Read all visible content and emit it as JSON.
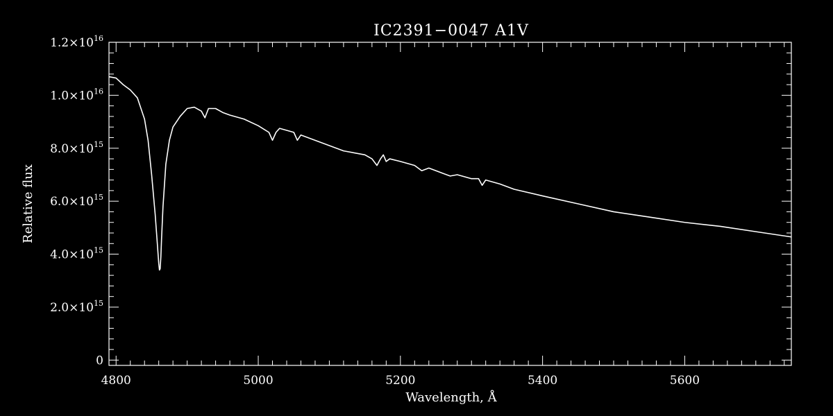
{
  "chart_data": {
    "type": "line",
    "title": "IC2391−0047  A1V",
    "xlabel": "Wavelength, Å",
    "ylabel": "Relative flux",
    "xlim": [
      4790,
      5750
    ],
    "ylim": [
      -200000000000000.0,
      1.2e+16
    ],
    "grid": false,
    "background": "#000000",
    "foreground": "#ffffff",
    "x_ticks": [
      {
        "value": 4800,
        "label": "4800"
      },
      {
        "value": 5000,
        "label": "5000"
      },
      {
        "value": 5200,
        "label": "5200"
      },
      {
        "value": 5400,
        "label": "5400"
      },
      {
        "value": 5600,
        "label": "5600"
      }
    ],
    "x_minor_step": 20,
    "y_ticks": [
      {
        "value": 0,
        "mantissa": "0",
        "exp": ""
      },
      {
        "value": 2000000000000000.0,
        "mantissa": "2.0×10",
        "exp": "15"
      },
      {
        "value": 4000000000000000.0,
        "mantissa": "4.0×10",
        "exp": "15"
      },
      {
        "value": 6000000000000000.0,
        "mantissa": "6.0×10",
        "exp": "15"
      },
      {
        "value": 8000000000000000.0,
        "mantissa": "8.0×10",
        "exp": "15"
      },
      {
        "value": 1e+16,
        "mantissa": "1.0×10",
        "exp": "16"
      },
      {
        "value": 1.2e+16,
        "mantissa": "1.2×10",
        "exp": "16"
      }
    ],
    "y_minor_step": 400000000000000.0,
    "series": [
      {
        "x": [
          4790,
          4800,
          4810,
          4820,
          4830,
          4840,
          4845,
          4850,
          4855,
          4858,
          4860,
          4861,
          4862,
          4863,
          4864,
          4866,
          4870,
          4875,
          4880,
          4890,
          4900,
          4910,
          4920,
          4925,
          4930,
          4940,
          4950,
          4960,
          4980,
          5000,
          5015,
          5020,
          5025,
          5030,
          5050,
          5055,
          5060,
          5080,
          5100,
          5120,
          5150,
          5160,
          5167,
          5172,
          5176,
          5180,
          5185,
          5200,
          5220,
          5230,
          5240,
          5260,
          5270,
          5280,
          5300,
          5310,
          5315,
          5320,
          5340,
          5360,
          5400,
          5450,
          5500,
          5550,
          5600,
          5650,
          5700,
          5750
        ],
        "y": [
          1.07e+16,
          1.065e+16,
          1.04e+16,
          1.02e+16,
          9900000000000000.0,
          9100000000000000.0,
          8300000000000000.0,
          7000000000000000.0,
          5500000000000000.0,
          4400000000000000.0,
          3650000000000000.0,
          3400000000000000.0,
          3450000000000000.0,
          3900000000000000.0,
          4600000000000000.0,
          5800000000000000.0,
          7400000000000000.0,
          8300000000000000.0,
          8800000000000000.0,
          9200000000000000.0,
          9500000000000000.0,
          9550000000000000.0,
          9400000000000000.0,
          9150000000000000.0,
          9500000000000000.0,
          9500000000000000.0,
          9350000000000000.0,
          9250000000000000.0,
          9100000000000000.0,
          8850000000000000.0,
          8600000000000000.0,
          8300000000000000.0,
          8600000000000000.0,
          8750000000000000.0,
          8600000000000000.0,
          8300000000000000.0,
          8500000000000000.0,
          8300000000000000.0,
          8100000000000000.0,
          7900000000000000.0,
          7750000000000000.0,
          7600000000000000.0,
          7350000000000000.0,
          7600000000000000.0,
          7750000000000000.0,
          7500000000000000.0,
          7600000000000000.0,
          7500000000000000.0,
          7350000000000000.0,
          7150000000000000.0,
          7250000000000000.0,
          7050000000000000.0,
          6950000000000000.0,
          7000000000000000.0,
          6850000000000000.0,
          6850000000000000.0,
          6600000000000000.0,
          6800000000000000.0,
          6650000000000000.0,
          6450000000000000.0,
          6200000000000000.0,
          5900000000000000.0,
          5600000000000000.0,
          5400000000000000.0,
          5200000000000000.0,
          5050000000000000.0,
          4850000000000000.0,
          4650000000000000.0
        ]
      }
    ]
  }
}
